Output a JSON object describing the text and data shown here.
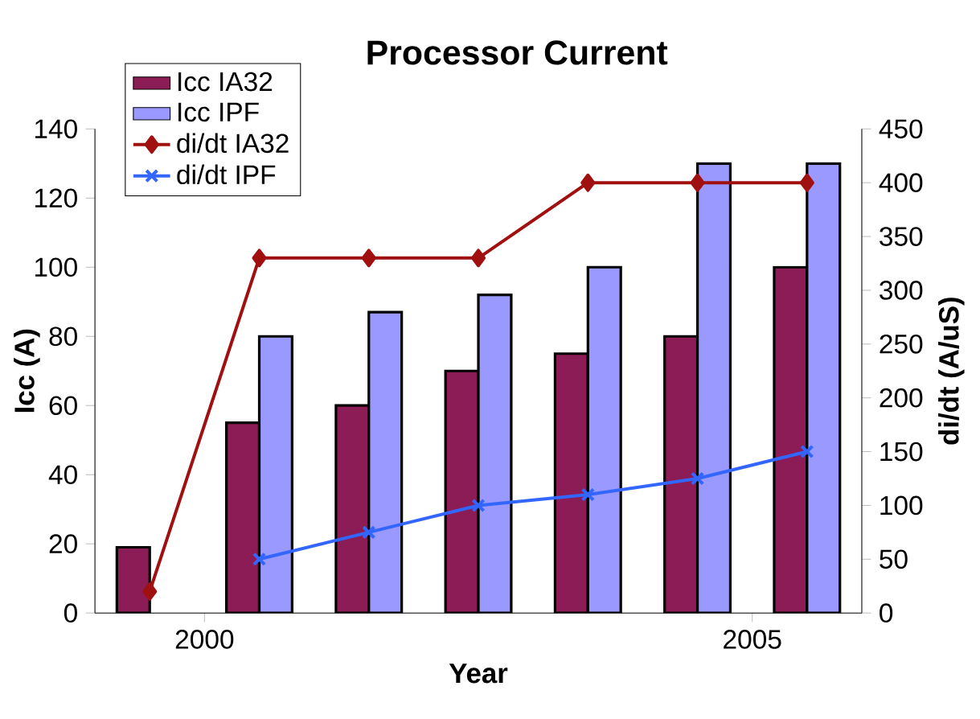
{
  "chart_data": {
    "type": "bar",
    "title": "Processor Current",
    "xlabel": "Year",
    "ylabel": "Icc (A)",
    "y2label": "di/dt (A/uS)",
    "x": [
      1999.5,
      2000.5,
      2001.5,
      2002.5,
      2003.5,
      2004.5,
      2005.5
    ],
    "xlim": [
      1999,
      2006
    ],
    "xticks": [
      2000,
      2005
    ],
    "ylim": [
      0,
      140
    ],
    "yticks": [
      0,
      20,
      40,
      60,
      80,
      100,
      120,
      140
    ],
    "y2lim": [
      0,
      450
    ],
    "y2ticks": [
      0,
      50,
      100,
      150,
      200,
      250,
      300,
      350,
      400,
      450
    ],
    "legend": "top left",
    "series": [
      {
        "name": "Icc IA32",
        "color": "#8c1c55",
        "values": [
          19,
          55,
          60,
          70,
          75,
          80,
          100
        ]
      },
      {
        "name": "Icc IPF",
        "color": "#9999ff",
        "values": [
          null,
          80,
          87,
          92,
          100,
          130,
          130
        ]
      },
      {
        "name": "di/dt IA32",
        "type": "line",
        "axis": "y2",
        "marker": "diamond",
        "color": "#a01010",
        "values": [
          20,
          330,
          330,
          330,
          400,
          400,
          400
        ]
      },
      {
        "name": "di/dt IPF",
        "type": "line",
        "axis": "y2",
        "marker": "cross",
        "color": "#3366ff",
        "values": [
          null,
          50,
          75,
          100,
          110,
          125,
          150
        ]
      }
    ]
  }
}
